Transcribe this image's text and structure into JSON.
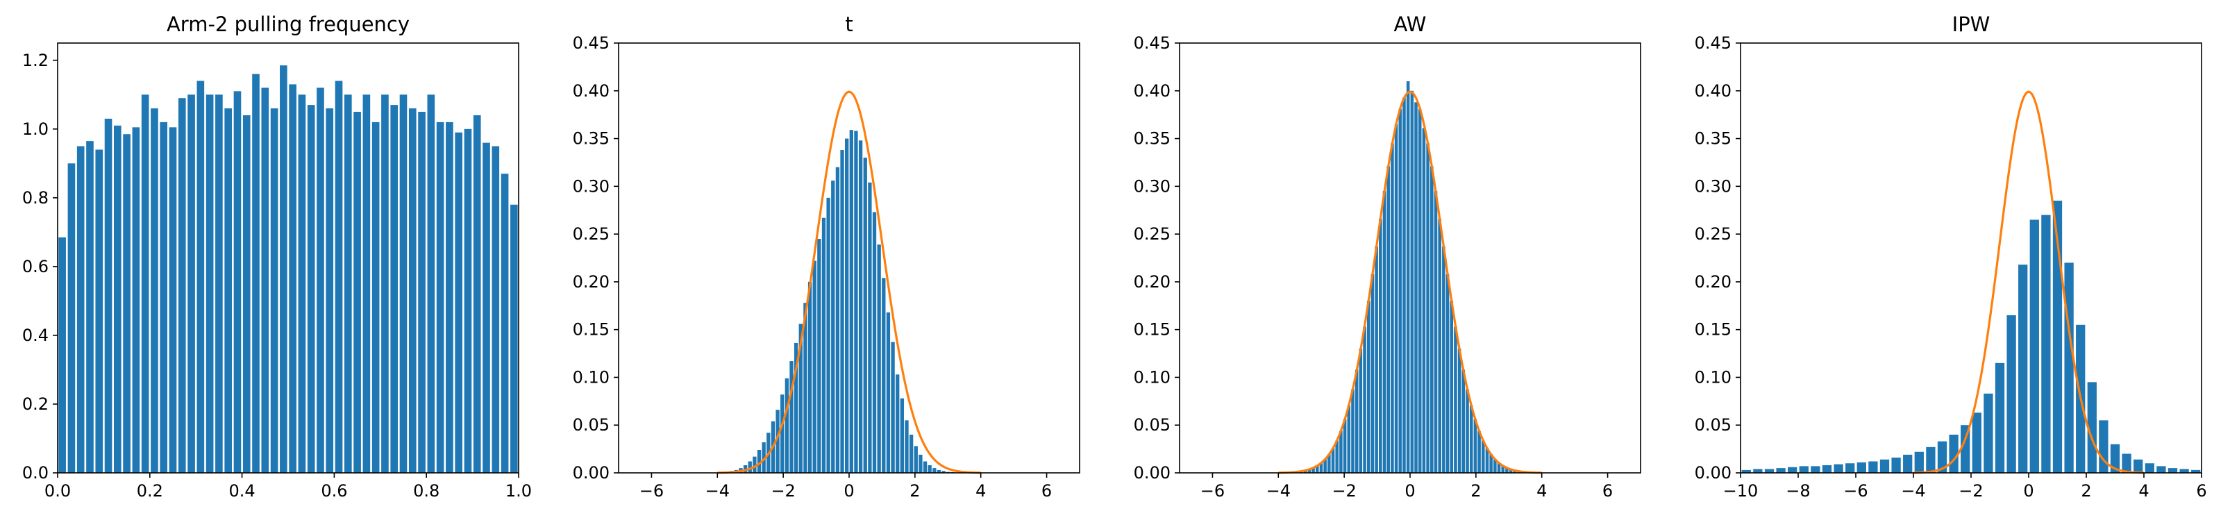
{
  "colors": {
    "bar": "#1f77b4",
    "curve": "#ff7f0e",
    "axis": "#000000"
  },
  "chart_data": [
    {
      "type": "bar",
      "title": "Arm-2 pulling frequency",
      "xlabel": "",
      "ylabel": "",
      "xlim": [
        0.0,
        1.0
      ],
      "ylim": [
        0.0,
        1.25
      ],
      "xticks": [
        0.0,
        0.2,
        0.4,
        0.6,
        0.8,
        1.0
      ],
      "xtick_labels": [
        "0.0",
        "0.2",
        "0.4",
        "0.6",
        "0.8",
        "1.0"
      ],
      "yticks": [
        0.0,
        0.2,
        0.4,
        0.6,
        0.8,
        1.0,
        1.2
      ],
      "ytick_labels": [
        "0.0",
        "0.2",
        "0.4",
        "0.6",
        "0.8",
        "1.0",
        "1.2"
      ],
      "bin_width": 0.02,
      "x": [
        0.01,
        0.03,
        0.05,
        0.07,
        0.09,
        0.11,
        0.13,
        0.15,
        0.17,
        0.19,
        0.21,
        0.23,
        0.25,
        0.27,
        0.29,
        0.31,
        0.33,
        0.35,
        0.37,
        0.39,
        0.41,
        0.43,
        0.45,
        0.47,
        0.49,
        0.51,
        0.53,
        0.55,
        0.57,
        0.59,
        0.61,
        0.63,
        0.65,
        0.67,
        0.69,
        0.71,
        0.73,
        0.75,
        0.77,
        0.79,
        0.81,
        0.83,
        0.85,
        0.87,
        0.89,
        0.91,
        0.93,
        0.95,
        0.97,
        0.99
      ],
      "values": [
        0.685,
        0.9,
        0.95,
        0.965,
        0.94,
        1.03,
        1.01,
        0.985,
        1.005,
        1.1,
        1.06,
        1.02,
        1.005,
        1.09,
        1.1,
        1.14,
        1.1,
        1.1,
        1.06,
        1.11,
        1.04,
        1.16,
        1.12,
        1.06,
        1.185,
        1.13,
        1.1,
        1.07,
        1.12,
        1.06,
        1.14,
        1.1,
        1.05,
        1.1,
        1.02,
        1.1,
        1.07,
        1.1,
        1.06,
        1.05,
        1.1,
        1.02,
        1.02,
        0.99,
        1.0,
        1.04,
        0.96,
        0.95,
        0.87,
        0.78
      ]
    },
    {
      "type": "bar",
      "title": "t",
      "xlabel": "",
      "ylabel": "",
      "xlim": [
        -7.0,
        7.0
      ],
      "ylim": [
        0.0,
        0.45
      ],
      "xticks": [
        -6,
        -4,
        -2,
        0,
        2,
        4,
        6
      ],
      "xtick_labels": [
        "−6",
        "−4",
        "−2",
        "0",
        "2",
        "4",
        "6"
      ],
      "yticks": [
        0.0,
        0.05,
        0.1,
        0.15,
        0.2,
        0.25,
        0.3,
        0.35,
        0.4,
        0.45
      ],
      "ytick_labels": [
        "0.00",
        "0.05",
        "0.10",
        "0.15",
        "0.20",
        "0.25",
        "0.30",
        "0.35",
        "0.40",
        "0.45"
      ],
      "bin_width": 0.14,
      "x": [
        -3.85,
        -3.71,
        -3.57,
        -3.43,
        -3.29,
        -3.15,
        -3.01,
        -2.87,
        -2.73,
        -2.59,
        -2.45,
        -2.31,
        -2.17,
        -2.03,
        -1.89,
        -1.75,
        -1.61,
        -1.47,
        -1.33,
        -1.19,
        -1.05,
        -0.91,
        -0.77,
        -0.63,
        -0.49,
        -0.35,
        -0.21,
        -0.07,
        0.07,
        0.21,
        0.35,
        0.49,
        0.63,
        0.77,
        0.91,
        1.05,
        1.19,
        1.33,
        1.47,
        1.61,
        1.75,
        1.89,
        2.03,
        2.17,
        2.31,
        2.45,
        2.59,
        2.73,
        2.87,
        3.01,
        3.15,
        3.29,
        3.43
      ],
      "values": [
        0.0005,
        0.001,
        0.002,
        0.003,
        0.005,
        0.008,
        0.012,
        0.017,
        0.024,
        0.032,
        0.042,
        0.054,
        0.066,
        0.082,
        0.099,
        0.117,
        0.136,
        0.156,
        0.178,
        0.2,
        0.222,
        0.245,
        0.267,
        0.288,
        0.306,
        0.32,
        0.338,
        0.35,
        0.359,
        0.358,
        0.348,
        0.33,
        0.304,
        0.273,
        0.239,
        0.204,
        0.168,
        0.137,
        0.103,
        0.078,
        0.055,
        0.04,
        0.028,
        0.019,
        0.012,
        0.008,
        0.005,
        0.003,
        0.002,
        0.001,
        0.0007,
        0.0004,
        0.0002
      ],
      "series": [
        {
          "values_from": "normal-pdf",
          "mu": 0,
          "sigma": 1
        }
      ]
    },
    {
      "type": "bar",
      "title": "AW",
      "xlabel": "",
      "ylabel": "",
      "xlim": [
        -7.0,
        7.0
      ],
      "ylim": [
        0.0,
        0.45
      ],
      "xticks": [
        -6,
        -4,
        -2,
        0,
        2,
        4,
        6
      ],
      "xtick_labels": [
        "−6",
        "−4",
        "−2",
        "0",
        "2",
        "4",
        "6"
      ],
      "yticks": [
        0.0,
        0.05,
        0.1,
        0.15,
        0.2,
        0.25,
        0.3,
        0.35,
        0.4,
        0.45
      ],
      "ytick_labels": [
        "0.00",
        "0.05",
        "0.10",
        "0.15",
        "0.20",
        "0.25",
        "0.30",
        "0.35",
        "0.40",
        "0.45"
      ],
      "bin_width": 0.12,
      "x": [
        -3.54,
        -3.42,
        -3.3,
        -3.18,
        -3.06,
        -2.94,
        -2.82,
        -2.7,
        -2.58,
        -2.46,
        -2.34,
        -2.22,
        -2.1,
        -1.98,
        -1.86,
        -1.74,
        -1.62,
        -1.5,
        -1.38,
        -1.26,
        -1.14,
        -1.02,
        -0.9,
        -0.78,
        -0.66,
        -0.54,
        -0.42,
        -0.3,
        -0.18,
        -0.06,
        0.06,
        0.18,
        0.3,
        0.42,
        0.54,
        0.66,
        0.78,
        0.9,
        1.02,
        1.14,
        1.26,
        1.38,
        1.5,
        1.62,
        1.74,
        1.86,
        1.98,
        2.1,
        2.22,
        2.34,
        2.46,
        2.58,
        2.7,
        2.82,
        2.94,
        3.06,
        3.18,
        3.3,
        3.42,
        3.54
      ],
      "values": [
        0.0008,
        0.0011,
        0.0016,
        0.0023,
        0.0036,
        0.0053,
        0.0075,
        0.0104,
        0.0143,
        0.0195,
        0.0259,
        0.0339,
        0.0439,
        0.0562,
        0.0707,
        0.0876,
        0.108,
        0.13,
        0.153,
        0.18,
        0.208,
        0.237,
        0.266,
        0.295,
        0.321,
        0.345,
        0.365,
        0.381,
        0.393,
        0.41,
        0.4,
        0.388,
        0.381,
        0.361,
        0.345,
        0.321,
        0.295,
        0.266,
        0.237,
        0.208,
        0.18,
        0.153,
        0.13,
        0.108,
        0.0876,
        0.0707,
        0.0562,
        0.0439,
        0.0339,
        0.0259,
        0.0195,
        0.0143,
        0.0104,
        0.0075,
        0.0053,
        0.0036,
        0.0023,
        0.0016,
        0.0011,
        0.0008
      ],
      "series": [
        {
          "values_from": "normal-pdf",
          "mu": 0,
          "sigma": 1
        }
      ]
    },
    {
      "type": "bar",
      "title": "IPW",
      "xlabel": "",
      "ylabel": "",
      "xlim": [
        -10.0,
        6.0
      ],
      "ylim": [
        0.0,
        0.45
      ],
      "xticks": [
        -10,
        -8,
        -6,
        -4,
        -2,
        0,
        2,
        4,
        6
      ],
      "xtick_labels": [
        "−10",
        "−8",
        "−6",
        "−4",
        "−2",
        "0",
        "2",
        "4",
        "6"
      ],
      "yticks": [
        0.0,
        0.05,
        0.1,
        0.15,
        0.2,
        0.25,
        0.3,
        0.35,
        0.4,
        0.45
      ],
      "ytick_labels": [
        "0.00",
        "0.05",
        "0.10",
        "0.15",
        "0.20",
        "0.25",
        "0.30",
        "0.35",
        "0.40",
        "0.45"
      ],
      "bin_width": 0.4,
      "x": [
        -9.8,
        -9.4,
        -9.0,
        -8.6,
        -8.2,
        -7.8,
        -7.4,
        -7.0,
        -6.6,
        -6.2,
        -5.8,
        -5.4,
        -5.0,
        -4.6,
        -4.2,
        -3.8,
        -3.4,
        -3.0,
        -2.6,
        -2.2,
        -1.8,
        -1.4,
        -1.0,
        -0.6,
        -0.2,
        0.2,
        0.6,
        1.0,
        1.4,
        1.8,
        2.2,
        2.6,
        3.0,
        3.4,
        3.8,
        4.2,
        4.6,
        5.0,
        5.4,
        5.8
      ],
      "values": [
        0.003,
        0.004,
        0.004,
        0.005,
        0.006,
        0.007,
        0.007,
        0.008,
        0.009,
        0.01,
        0.011,
        0.012,
        0.014,
        0.016,
        0.019,
        0.022,
        0.027,
        0.033,
        0.04,
        0.05,
        0.063,
        0.083,
        0.115,
        0.165,
        0.218,
        0.265,
        0.27,
        0.285,
        0.22,
        0.155,
        0.095,
        0.055,
        0.03,
        0.02,
        0.014,
        0.01,
        0.007,
        0.005,
        0.004,
        0.003
      ],
      "series": [
        {
          "values_from": "normal-pdf",
          "mu": 0,
          "sigma": 1
        }
      ]
    }
  ]
}
